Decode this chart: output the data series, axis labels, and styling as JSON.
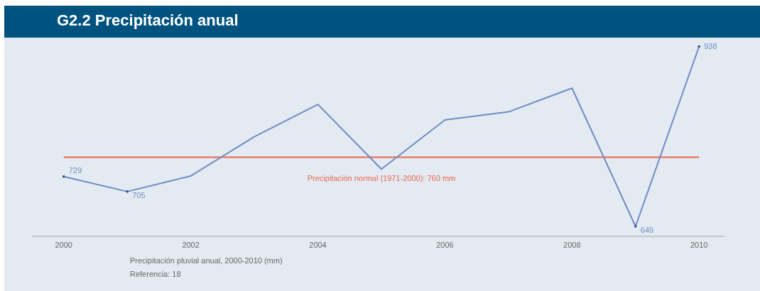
{
  "chart_data": {
    "type": "line",
    "title": "G2.2 Precipitación anual",
    "x": [
      2000,
      2001,
      2002,
      2003,
      2004,
      2005,
      2006,
      2007,
      2008,
      2009,
      2010
    ],
    "series": [
      {
        "color": "#6f8cc4",
        "values": [
          729,
          705,
          730,
          793,
          845,
          741,
          820,
          833,
          871,
          649,
          938
        ],
        "value_labels": [
          "729",
          "705",
          null,
          null,
          null,
          null,
          null,
          null,
          null,
          "649",
          "938"
        ]
      }
    ],
    "xlim": [
      1999.5,
      2010.4
    ],
    "xticks": [
      2000,
      2002,
      2004,
      2006,
      2008,
      2010
    ],
    "ylim": [
      633,
      950
    ],
    "tick_labels": "x",
    "line_style": "solid",
    "ref_lines": [
      {
        "axis": "y",
        "value": 760,
        "label": "Precipitación normal (1971-2000): 760 mm",
        "color": "#e8674f"
      }
    ],
    "annotations": [
      "Precipitación pluvial anual, 2000-2010 (mm)",
      "Referencia: 18"
    ]
  }
}
